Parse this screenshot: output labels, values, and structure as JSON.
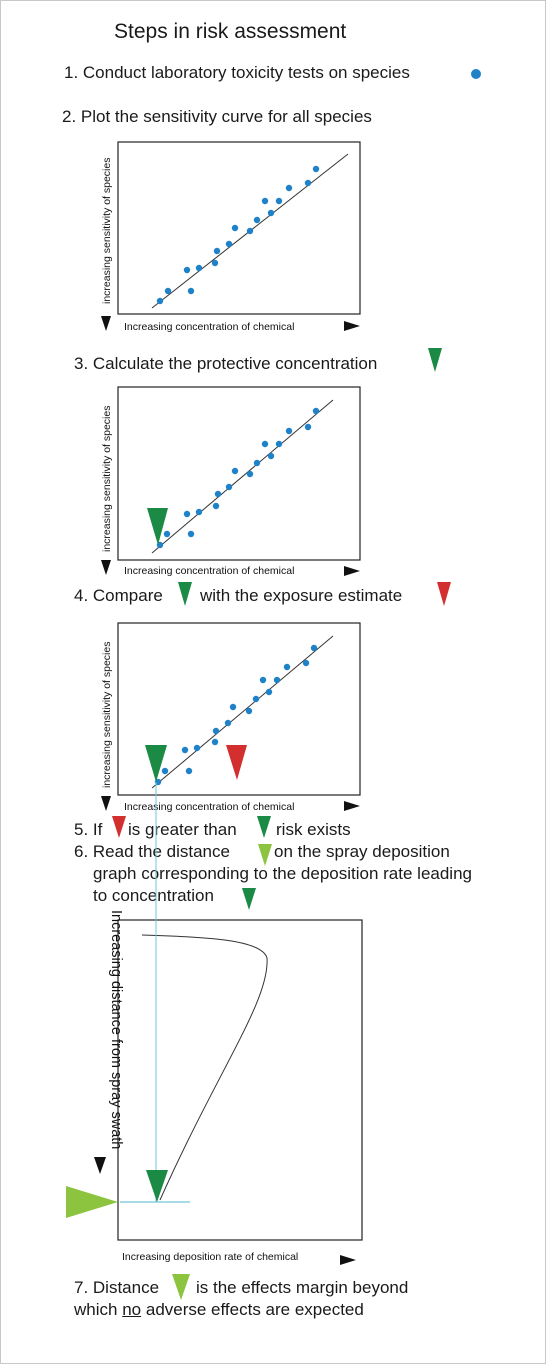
{
  "title": "Steps in risk assessment",
  "steps": {
    "s1": "1. Conduct laboratory toxicity tests on species",
    "s2": "2. Plot the sensitivity curve for all species",
    "s3": "3. Calculate the protective concentration",
    "s4a": "4. Compare",
    "s4b": "with the exposure estimate",
    "s5a": "5. If",
    "s5b": "is greater than",
    "s5c": "risk exists",
    "s6a": "6. Read the distance",
    "s6b": "on the spray deposition",
    "s6c": "graph corresponding to the deposition rate leading",
    "s6d": "to concentration",
    "s7a": "7. Distance",
    "s7b": "is the effects margin beyond",
    "s7c": "which",
    "s7d": "no",
    "s7e": "adverse effects are expected"
  },
  "plots": {
    "xlabel": "Increasing concentration of chemical",
    "ylabel": "increasing sensitivity of species"
  },
  "deposition_graph": {
    "xlabel": "Increasing deposition rate of chemical",
    "ylabel": "Increasing distance from spray swath"
  },
  "colors": {
    "species_dot": "#1f82c9",
    "protective_marker": "#1b8a45",
    "exposure_marker": "#d32f2f",
    "distance_marker": "#8cc43f",
    "guide_line": "#6fc7d8"
  },
  "icons": {
    "species": "blue-dot-icon",
    "protective": "green-down-triangle-icon",
    "exposure": "red-down-triangle-icon",
    "distance": "light-green-triangle-icon"
  }
}
